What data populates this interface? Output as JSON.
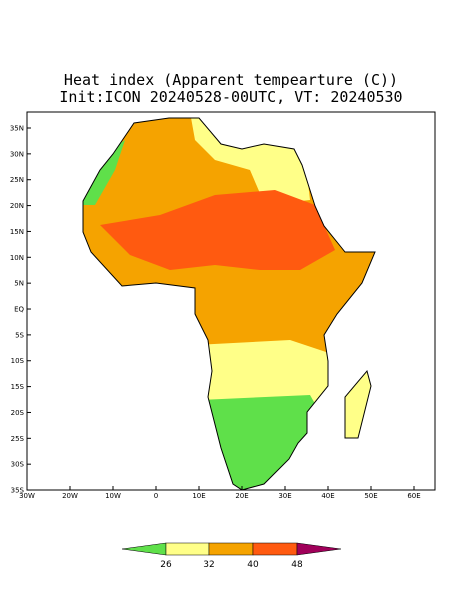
{
  "title": "Heat index (Apparent tempearture (C))",
  "subtitle": "Init:ICON 20240528-00UTC, VT: 20240530",
  "map": {
    "lat_labels": [
      "35N",
      "30N",
      "25N",
      "20N",
      "15N",
      "10N",
      "5N",
      "EQ",
      "5S",
      "10S",
      "15S",
      "20S",
      "25S",
      "30S",
      "35S"
    ],
    "lon_labels": [
      "30W",
      "20W",
      "10W",
      "0",
      "10E",
      "20E",
      "30E",
      "40E",
      "50E",
      "60E"
    ]
  },
  "colorbar": {
    "levels": [
      26,
      32,
      40,
      48
    ],
    "colors": [
      "#5fe04a",
      "#ffff88",
      "#f5a300",
      "#ff5a10",
      "#a0005a"
    ]
  }
}
